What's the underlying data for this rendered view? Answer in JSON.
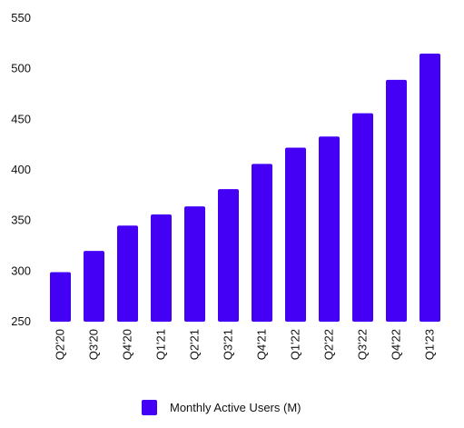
{
  "chart_data": {
    "type": "bar",
    "categories": [
      "Q2'20",
      "Q3'20",
      "Q4'20",
      "Q1'21",
      "Q2'21",
      "Q3'21",
      "Q4'21",
      "Q1'22",
      "Q2'22",
      "Q3'22",
      "Q4'22",
      "Q1'23"
    ],
    "series": [
      {
        "name": "Monthly Active Users (M)",
        "values": [
          299,
          320,
          345,
          356,
          364,
          381,
          406,
          422,
          433,
          456,
          489,
          515
        ],
        "color": "#4400f5"
      }
    ],
    "ylim": [
      250,
      550
    ],
    "yticks": [
      250,
      300,
      350,
      400,
      450,
      500,
      550
    ],
    "grid": false,
    "legend_position": "bottom"
  }
}
